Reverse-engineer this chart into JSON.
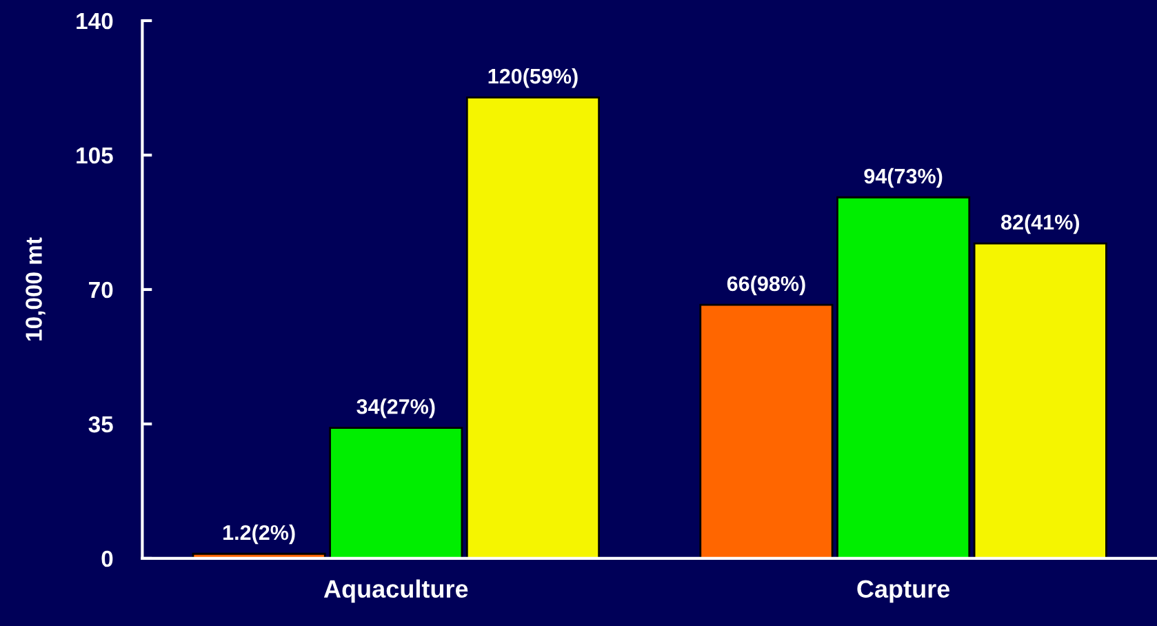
{
  "chart_data": {
    "type": "bar",
    "ylabel": "10,000 mt",
    "categories": [
      "Aquaculture",
      "Capture"
    ],
    "series": [
      {
        "color": "#ff6600",
        "values": [
          1.2,
          66
        ],
        "value_labels": [
          "1.2(2%)",
          "66(98%)"
        ]
      },
      {
        "color": "#00ee00",
        "values": [
          34,
          94
        ],
        "value_labels": [
          "34(27%)",
          "94(73%)"
        ]
      },
      {
        "color": "#f5f500",
        "values": [
          120,
          82
        ],
        "value_labels": [
          "120(59%)",
          "82(41%)"
        ]
      }
    ],
    "ylim": [
      0,
      140
    ],
    "yticks": [
      0,
      35,
      70,
      105,
      140
    ],
    "grid": false,
    "legend": false
  }
}
